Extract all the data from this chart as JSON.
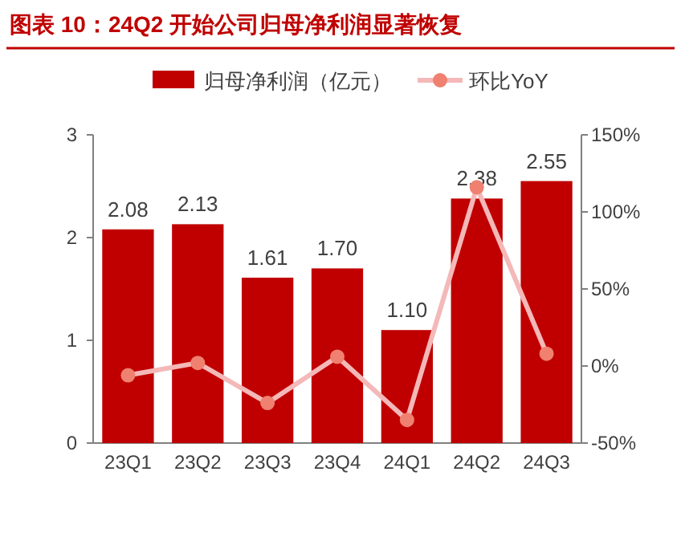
{
  "chart_data": {
    "type": "bar",
    "title": "图表 10：24Q2 开始公司归母净利润显著恢复",
    "categories": [
      "23Q1",
      "23Q2",
      "23Q3",
      "23Q4",
      "24Q1",
      "24Q2",
      "24Q3"
    ],
    "series": [
      {
        "name": "归母净利润（亿元）",
        "color": "#c00000",
        "values": [
          2.08,
          2.13,
          1.61,
          1.7,
          1.1,
          2.38,
          2.55
        ],
        "value_labels": [
          "2.08",
          "2.13",
          "1.61",
          "1.70",
          "1.10",
          "2.38",
          "2.55"
        ]
      },
      {
        "name": "环比YoY",
        "type": "line",
        "axis": "y2",
        "color": "#f4b8b8",
        "colors": [
          "#f08070",
          "#f08070",
          "#f08070",
          "#f08070",
          "#f08070",
          "#f08070",
          "#f08070"
        ],
        "marker": "circle",
        "values": [
          -6,
          2,
          -24,
          6,
          -35,
          116,
          8
        ]
      }
    ],
    "ylim": [
      0,
      3
    ],
    "yticks": [
      0,
      1,
      2,
      3
    ],
    "y2lim": [
      -50,
      150
    ],
    "y2ticks": [
      {
        "value": -50,
        "label": "-50%"
      },
      {
        "value": 0,
        "label": "0%"
      },
      {
        "value": 50,
        "label": "50%"
      },
      {
        "value": 100,
        "label": "100%"
      },
      {
        "value": 150,
        "label": "150%"
      }
    ],
    "grid": false,
    "legend": "top"
  }
}
